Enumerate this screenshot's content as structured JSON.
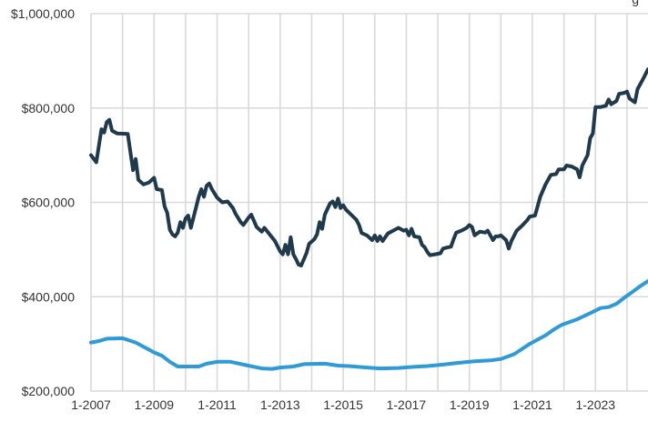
{
  "corner_text": "g",
  "chart_data": {
    "type": "line",
    "title": "",
    "xlabel": "",
    "ylabel": "",
    "ylim": [
      200000,
      1000000
    ],
    "y_ticks": [
      200000,
      400000,
      600000,
      800000,
      1000000
    ],
    "y_tick_labels": [
      "$200,000",
      "$400,000",
      "$600,000",
      "$800,000",
      "$1,000,000"
    ],
    "x_range": [
      "2007-01",
      "2024-09"
    ],
    "x_ticks": [
      "2007-01",
      "2009-01",
      "2011-01",
      "2013-01",
      "2015-01",
      "2017-01",
      "2019-01",
      "2021-01",
      "2023-01"
    ],
    "x_tick_labels": [
      "1-2007",
      "1-2009",
      "1-2011",
      "1-2013",
      "1-2015",
      "1-2017",
      "1-2019",
      "1-2021",
      "1-2023"
    ],
    "grid": {
      "horizontal": true,
      "vertical": true
    },
    "series": [
      {
        "color": "#1e3a4c",
        "points": [
          [
            "2007-01",
            700000
          ],
          [
            "2007-03",
            685000
          ],
          [
            "2007-05",
            755000
          ],
          [
            "2007-06",
            748000
          ],
          [
            "2007-07",
            770000
          ],
          [
            "2007-08",
            775000
          ],
          [
            "2007-09",
            752000
          ],
          [
            "2007-11",
            746000
          ],
          [
            "2008-03",
            745000
          ],
          [
            "2008-05",
            668000
          ],
          [
            "2008-06",
            692000
          ],
          [
            "2008-07",
            648000
          ],
          [
            "2008-09",
            638000
          ],
          [
            "2008-11",
            642000
          ],
          [
            "2009-01",
            652000
          ],
          [
            "2009-02",
            628000
          ],
          [
            "2009-04",
            626000
          ],
          [
            "2009-05",
            592000
          ],
          [
            "2009-06",
            578000
          ],
          [
            "2009-07",
            542000
          ],
          [
            "2009-08",
            532000
          ],
          [
            "2009-09",
            528000
          ],
          [
            "2009-10",
            536000
          ],
          [
            "2009-11",
            558000
          ],
          [
            "2009-12",
            546000
          ],
          [
            "2010-01",
            566000
          ],
          [
            "2010-02",
            572000
          ],
          [
            "2010-03",
            546000
          ],
          [
            "2010-05",
            590000
          ],
          [
            "2010-06",
            612000
          ],
          [
            "2010-07",
            628000
          ],
          [
            "2010-08",
            612000
          ],
          [
            "2010-09",
            635000
          ],
          [
            "2010-10",
            640000
          ],
          [
            "2010-11",
            628000
          ],
          [
            "2011-01",
            610000
          ],
          [
            "2011-03",
            600000
          ],
          [
            "2011-05",
            602000
          ],
          [
            "2011-07",
            588000
          ],
          [
            "2011-08",
            576000
          ],
          [
            "2011-10",
            558000
          ],
          [
            "2011-11",
            552000
          ],
          [
            "2012-01",
            568000
          ],
          [
            "2012-02",
            574000
          ],
          [
            "2012-04",
            548000
          ],
          [
            "2012-06",
            538000
          ],
          [
            "2012-07",
            546000
          ],
          [
            "2012-09",
            532000
          ],
          [
            "2012-11",
            518000
          ],
          [
            "2013-01",
            496000
          ],
          [
            "2013-02",
            490000
          ],
          [
            "2013-03",
            510000
          ],
          [
            "2013-04",
            490000
          ],
          [
            "2013-05",
            526000
          ],
          [
            "2013-06",
            490000
          ],
          [
            "2013-07",
            480000
          ],
          [
            "2013-08",
            468000
          ],
          [
            "2013-09",
            466000
          ],
          [
            "2013-11",
            492000
          ],
          [
            "2013-12",
            512000
          ],
          [
            "2014-02",
            522000
          ],
          [
            "2014-03",
            532000
          ],
          [
            "2014-04",
            558000
          ],
          [
            "2014-05",
            544000
          ],
          [
            "2014-06",
            574000
          ],
          [
            "2014-08",
            598000
          ],
          [
            "2014-09",
            602000
          ],
          [
            "2014-10",
            590000
          ],
          [
            "2014-11",
            608000
          ],
          [
            "2014-12",
            588000
          ],
          [
            "2015-01",
            594000
          ],
          [
            "2015-02",
            585000
          ],
          [
            "2015-04",
            574000
          ],
          [
            "2015-06",
            563000
          ],
          [
            "2015-07",
            552000
          ],
          [
            "2015-08",
            535000
          ],
          [
            "2015-10",
            530000
          ],
          [
            "2015-12",
            520000
          ],
          [
            "2016-01",
            530000
          ],
          [
            "2016-02",
            518000
          ],
          [
            "2016-03",
            528000
          ],
          [
            "2016-04",
            518000
          ],
          [
            "2016-06",
            534000
          ],
          [
            "2016-08",
            540000
          ],
          [
            "2016-10",
            546000
          ],
          [
            "2016-12",
            540000
          ],
          [
            "2017-01",
            542000
          ],
          [
            "2017-02",
            530000
          ],
          [
            "2017-03",
            544000
          ],
          [
            "2017-04",
            528000
          ],
          [
            "2017-06",
            526000
          ],
          [
            "2017-07",
            510000
          ],
          [
            "2017-08",
            505000
          ],
          [
            "2017-09",
            495000
          ],
          [
            "2017-10",
            488000
          ],
          [
            "2017-12",
            490000
          ],
          [
            "2018-02",
            492000
          ],
          [
            "2018-03",
            502000
          ],
          [
            "2018-05",
            505000
          ],
          [
            "2018-06",
            506000
          ],
          [
            "2018-07",
            522000
          ],
          [
            "2018-08",
            536000
          ],
          [
            "2018-10",
            540000
          ],
          [
            "2018-12",
            546000
          ],
          [
            "2019-01",
            552000
          ],
          [
            "2019-02",
            548000
          ],
          [
            "2019-03",
            530000
          ],
          [
            "2019-05",
            538000
          ],
          [
            "2019-07",
            536000
          ],
          [
            "2019-08",
            540000
          ],
          [
            "2019-09",
            530000
          ],
          [
            "2019-10",
            520000
          ],
          [
            "2019-11",
            528000
          ],
          [
            "2019-12",
            528000
          ],
          [
            "2020-01",
            530000
          ],
          [
            "2020-03",
            520000
          ],
          [
            "2020-04",
            502000
          ],
          [
            "2020-05",
            518000
          ],
          [
            "2020-07",
            540000
          ],
          [
            "2020-09",
            550000
          ],
          [
            "2020-11",
            562000
          ],
          [
            "2020-12",
            570000
          ],
          [
            "2021-02",
            572000
          ],
          [
            "2021-04",
            612000
          ],
          [
            "2021-06",
            638000
          ],
          [
            "2021-08",
            658000
          ],
          [
            "2021-10",
            660000
          ],
          [
            "2021-11",
            670000
          ],
          [
            "2022-01",
            670000
          ],
          [
            "2022-02",
            678000
          ],
          [
            "2022-04",
            676000
          ],
          [
            "2022-06",
            670000
          ],
          [
            "2022-07",
            653000
          ],
          [
            "2022-08",
            678000
          ],
          [
            "2022-10",
            700000
          ],
          [
            "2022-11",
            736000
          ],
          [
            "2022-12",
            746000
          ],
          [
            "2023-01",
            802000
          ],
          [
            "2023-03",
            802000
          ],
          [
            "2023-05",
            805000
          ],
          [
            "2023-06",
            818000
          ],
          [
            "2023-07",
            808000
          ],
          [
            "2023-09",
            815000
          ],
          [
            "2023-10",
            830000
          ],
          [
            "2023-12",
            832000
          ],
          [
            "2024-01",
            835000
          ],
          [
            "2024-02",
            820000
          ],
          [
            "2024-04",
            812000
          ],
          [
            "2024-05",
            840000
          ],
          [
            "2024-07",
            860000
          ],
          [
            "2024-09",
            882000
          ]
        ]
      },
      {
        "color": "#2e9ad6",
        "points": [
          [
            "2007-01",
            303000
          ],
          [
            "2007-04",
            306000
          ],
          [
            "2007-07",
            311000
          ],
          [
            "2008-01",
            312000
          ],
          [
            "2008-06",
            303000
          ],
          [
            "2009-01",
            282000
          ],
          [
            "2009-04",
            275000
          ],
          [
            "2009-07",
            262000
          ],
          [
            "2009-10",
            252000
          ],
          [
            "2010-06",
            252000
          ],
          [
            "2010-09",
            258000
          ],
          [
            "2011-01",
            262000
          ],
          [
            "2011-06",
            262000
          ],
          [
            "2011-12",
            255000
          ],
          [
            "2012-06",
            248000
          ],
          [
            "2012-10",
            247000
          ],
          [
            "2013-01",
            250000
          ],
          [
            "2013-06",
            252000
          ],
          [
            "2013-10",
            257000
          ],
          [
            "2014-06",
            258000
          ],
          [
            "2014-11",
            254000
          ],
          [
            "2015-03",
            253000
          ],
          [
            "2015-10",
            250000
          ],
          [
            "2016-03",
            248000
          ],
          [
            "2016-10",
            249000
          ],
          [
            "2017-03",
            251000
          ],
          [
            "2017-09",
            253000
          ],
          [
            "2018-03",
            256000
          ],
          [
            "2018-09",
            260000
          ],
          [
            "2019-03",
            263000
          ],
          [
            "2019-09",
            265000
          ],
          [
            "2020-01",
            268000
          ],
          [
            "2020-06",
            278000
          ],
          [
            "2020-12",
            300000
          ],
          [
            "2021-06",
            318000
          ],
          [
            "2021-09",
            330000
          ],
          [
            "2021-12",
            340000
          ],
          [
            "2022-06",
            352000
          ],
          [
            "2022-12",
            368000
          ],
          [
            "2023-03",
            376000
          ],
          [
            "2023-06",
            378000
          ],
          [
            "2023-09",
            385000
          ],
          [
            "2023-12",
            398000
          ],
          [
            "2024-03",
            410000
          ],
          [
            "2024-06",
            422000
          ],
          [
            "2024-09",
            433000
          ]
        ]
      }
    ]
  }
}
